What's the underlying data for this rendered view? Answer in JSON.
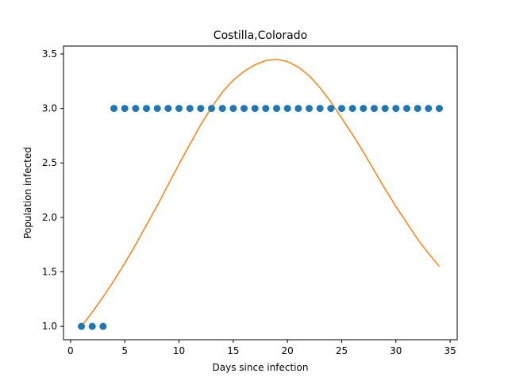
{
  "chart_data": {
    "type": "scatter",
    "title": "Costilla,Colorado",
    "xlabel": "Days since infection",
    "ylabel": "Population infected",
    "xlim": [
      -0.65,
      35.65
    ],
    "ylim": [
      0.8775,
      3.5725
    ],
    "x_ticks": [
      0,
      5,
      10,
      15,
      20,
      25,
      30,
      35
    ],
    "x_tick_labels": [
      "0",
      "5",
      "10",
      "15",
      "20",
      "25",
      "30",
      "35"
    ],
    "y_ticks": [
      1.0,
      1.5,
      2.0,
      2.5,
      3.0,
      3.5
    ],
    "y_tick_labels": [
      "1.0",
      "1.5",
      "2.0",
      "2.5",
      "3.0",
      "3.5"
    ],
    "grid": false,
    "legend": "none",
    "series": [
      {
        "type": "scatter",
        "color": "#1f77b4",
        "x": [
          1,
          2,
          3,
          4,
          5,
          6,
          7,
          8,
          9,
          10,
          11,
          12,
          13,
          14,
          15,
          16,
          17,
          18,
          19,
          20,
          21,
          22,
          23,
          24,
          25,
          26,
          27,
          28,
          29,
          30,
          31,
          32,
          33,
          34
        ],
        "y": [
          1,
          1,
          1,
          3,
          3,
          3,
          3,
          3,
          3,
          3,
          3,
          3,
          3,
          3,
          3,
          3,
          3,
          3,
          3,
          3,
          3,
          3,
          3,
          3,
          3,
          3,
          3,
          3,
          3,
          3,
          3,
          3,
          3,
          3
        ]
      },
      {
        "type": "line",
        "color": "#ff7f0e",
        "x": [
          1,
          2,
          3,
          4,
          5,
          6,
          7,
          8,
          9,
          10,
          11,
          12,
          13,
          14,
          15,
          16,
          17,
          18,
          19,
          20,
          21,
          22,
          23,
          24,
          25,
          26,
          27,
          28,
          29,
          30,
          31,
          32,
          33,
          34
        ],
        "y": [
          1.0,
          1.13,
          1.27,
          1.42,
          1.58,
          1.75,
          1.93,
          2.11,
          2.3,
          2.49,
          2.67,
          2.85,
          3.01,
          3.15,
          3.26,
          3.34,
          3.4,
          3.44,
          3.45,
          3.43,
          3.38,
          3.3,
          3.19,
          3.06,
          2.91,
          2.76,
          2.6,
          2.43,
          2.26,
          2.1,
          1.95,
          1.8,
          1.67,
          1.55
        ]
      }
    ]
  }
}
